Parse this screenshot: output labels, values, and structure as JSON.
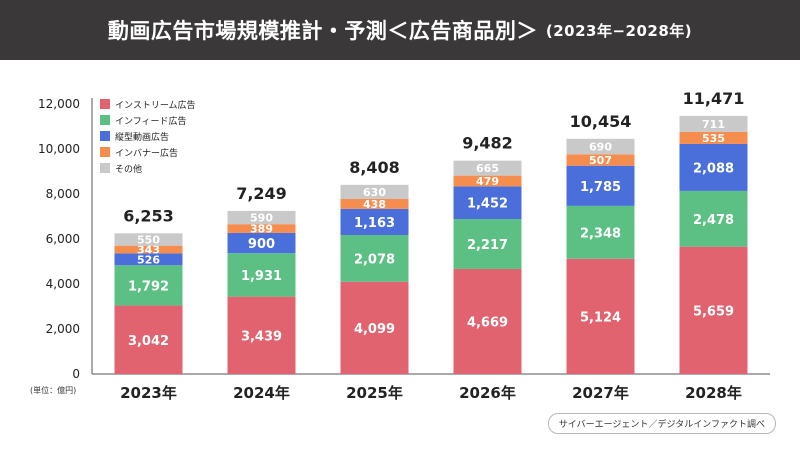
{
  "header": {
    "title": "動画広告市場規模推計・予測＜広告商品別＞",
    "period": "(2023年−2028年)"
  },
  "unit_note": "(単位：億円)",
  "source_note": "サイバーエージェント／デジタルインファクト調べ",
  "chart_data": {
    "type": "bar",
    "stacked": true,
    "categories": [
      "2023年",
      "2024年",
      "2025年",
      "2026年",
      "2027年",
      "2028年"
    ],
    "series": [
      {
        "name": "インストリーム広告",
        "color": "#e0636f",
        "values": [
          3042,
          3439,
          4099,
          4669,
          5124,
          5659
        ]
      },
      {
        "name": "インフィード広告",
        "color": "#5cc085",
        "values": [
          1792,
          1931,
          2078,
          2217,
          2348,
          2478
        ]
      },
      {
        "name": "縦型動画広告",
        "color": "#4a6fda",
        "values": [
          526,
          900,
          1163,
          1452,
          1785,
          2088
        ]
      },
      {
        "name": "インバナー広告",
        "color": "#f58d4e",
        "values": [
          343,
          389,
          438,
          479,
          507,
          535
        ]
      },
      {
        "name": "その他",
        "color": "#c9c9c9",
        "values": [
          550,
          590,
          630,
          665,
          690,
          711
        ]
      }
    ],
    "totals": [
      6253,
      7249,
      8408,
      9482,
      10454,
      11471
    ],
    "ylim": [
      0,
      12000
    ],
    "yticks": [
      0,
      2000,
      4000,
      6000,
      8000,
      10000,
      12000
    ],
    "legend_position": "top-left"
  }
}
